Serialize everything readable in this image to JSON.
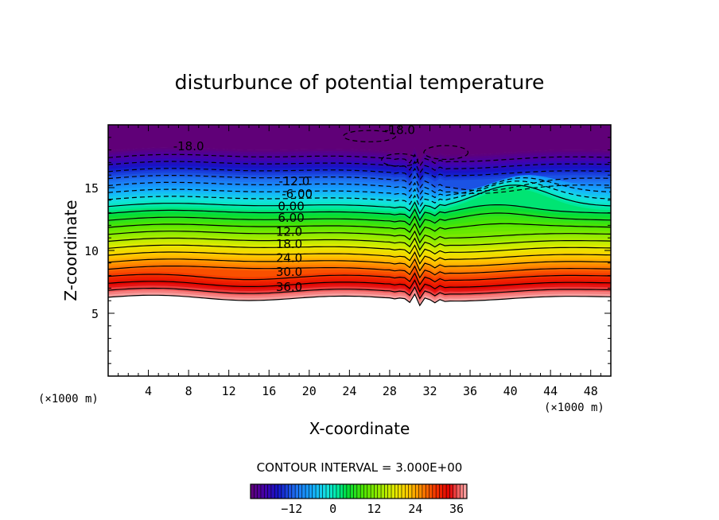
{
  "chart_data": {
    "type": "contour",
    "title": "disturbunce of potential temperature",
    "xlabel": "X-coordinate",
    "ylabel": "Z-coordinate",
    "x_unit": "(×1000 m)",
    "y_unit": "(×1000 m)",
    "xlim": [
      0,
      50
    ],
    "ylim": [
      0,
      20
    ],
    "x_ticks": [
      4,
      8,
      12,
      16,
      20,
      24,
      28,
      32,
      36,
      40,
      44,
      48
    ],
    "y_ticks": [
      5,
      10,
      15
    ],
    "contour_interval_text": "CONTOUR INTERVAL = 3.000E+00",
    "contour_interval": 3.0,
    "value_range": [
      -24,
      39
    ],
    "contour_labels": [
      {
        "text": "-18.0",
        "x": 29,
        "z": 19.6
      },
      {
        "text": "-18.0",
        "x": 8,
        "z": 18.3
      },
      {
        "text": "-12.0",
        "x": 18.5,
        "z": 15.5
      },
      {
        "text": "-6.00",
        "x": 18.8,
        "z": 14.5
      },
      {
        "text": "0.00",
        "x": 18.2,
        "z": 13.5
      },
      {
        "text": "6.00",
        "x": 18.2,
        "z": 12.6
      },
      {
        "text": "12.0",
        "x": 18.0,
        "z": 11.5
      },
      {
        "text": "18.0",
        "x": 18.0,
        "z": 10.5
      },
      {
        "text": "24.0",
        "x": 18.0,
        "z": 9.4
      },
      {
        "text": "30.0",
        "x": 18.0,
        "z": 8.3
      },
      {
        "text": "36.0",
        "x": 18.0,
        "z": 7.1
      }
    ],
    "colorbar": {
      "ticks": [
        -12,
        0,
        12,
        24,
        36
      ],
      "tick_labels": [
        "−12",
        "0",
        "12",
        "24",
        "36"
      ],
      "min": -24,
      "max": 39
    }
  }
}
